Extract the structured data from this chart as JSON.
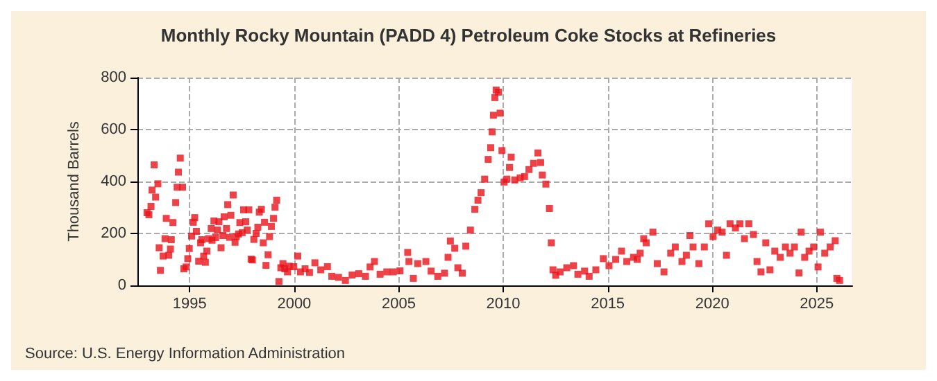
{
  "chart_data": {
    "type": "scatter",
    "title": "Monthly Rocky Mountain (PADD 4) Petroleum Coke Stocks at Refineries",
    "ylabel": "Thousand Barrels",
    "annotations": [
      "Source: U.S. Energy Information Administration"
    ],
    "x": [
      1992.96,
      1993.05,
      1993.15,
      1993.2,
      1993.3,
      1993.37,
      1993.48,
      1993.54,
      1993.6,
      1993.73,
      1993.82,
      1993.88,
      1994.0,
      1994.08,
      1994.12,
      1994.2,
      1994.33,
      1994.4,
      1994.46,
      1994.55,
      1994.66,
      1994.72,
      1994.83,
      1994.91,
      1994.98,
      1995.09,
      1995.17,
      1995.24,
      1995.32,
      1995.43,
      1995.52,
      1995.58,
      1995.67,
      1995.75,
      1995.82,
      1995.9,
      1996.03,
      1996.07,
      1996.16,
      1996.24,
      1996.33,
      1996.4,
      1996.5,
      1996.59,
      1996.65,
      1996.76,
      1996.82,
      1996.91,
      1996.97,
      1997.08,
      1997.17,
      1997.23,
      1997.34,
      1997.4,
      1997.51,
      1997.58,
      1997.68,
      1997.75,
      1997.83,
      1997.94,
      1998.0,
      1998.07,
      1998.18,
      1998.26,
      1998.33,
      1998.43,
      1998.52,
      1998.58,
      1998.65,
      1998.75,
      1998.82,
      1998.91,
      1999.01,
      1999.08,
      1999.16,
      1999.27,
      1999.36,
      1999.46,
      1999.55,
      1999.68,
      1999.76,
      1999.98,
      2000.17,
      2000.3,
      2000.52,
      2000.73,
      2000.99,
      2001.27,
      2001.59,
      2001.8,
      2002.12,
      2002.45,
      2002.77,
      2003.09,
      2003.41,
      2003.63,
      2003.84,
      2004.11,
      2004.43,
      2004.74,
      2005.06,
      2005.43,
      2005.49,
      2005.7,
      2005.91,
      2006.3,
      2006.55,
      2006.87,
      2007.19,
      2007.36,
      2007.47,
      2007.68,
      2007.83,
      2008.04,
      2008.21,
      2008.43,
      2008.64,
      2008.79,
      2008.94,
      2009.11,
      2009.28,
      2009.4,
      2009.47,
      2009.53,
      2009.6,
      2009.66,
      2009.77,
      2009.85,
      2009.94,
      2010.04,
      2010.17,
      2010.3,
      2010.38,
      2010.55,
      2010.81,
      2011.02,
      2011.23,
      2011.45,
      2011.66,
      2011.79,
      2011.87,
      2012.04,
      2012.21,
      2012.3,
      2012.38,
      2012.51,
      2012.72,
      2013.04,
      2013.36,
      2013.57,
      2013.89,
      2014.11,
      2014.43,
      2014.79,
      2015.06,
      2015.38,
      2015.66,
      2015.91,
      2016.23,
      2016.41,
      2016.55,
      2016.72,
      2016.84,
      2017.16,
      2017.37,
      2017.69,
      2018.01,
      2018.23,
      2018.55,
      2018.76,
      2018.93,
      2019.08,
      2019.36,
      2019.62,
      2019.83,
      2020.04,
      2020.26,
      2020.47,
      2020.68,
      2020.85,
      2021.11,
      2021.32,
      2021.54,
      2021.75,
      2021.97,
      2022.14,
      2022.33,
      2022.56,
      2022.76,
      2022.99,
      2023.25,
      2023.5,
      2023.72,
      2023.93,
      2024.15,
      2024.25,
      2024.42,
      2024.63,
      2024.85,
      2025.06,
      2025.17,
      2025.38,
      2025.64,
      2025.88,
      2025.96,
      2026.09
    ],
    "series": [
      {
        "color": "#e8131a",
        "values": [
          280,
          272,
          304,
          367,
          464,
          340,
          391,
          145,
          58,
          113,
          180,
          258,
          116,
          140,
          176,
          242,
          319,
          378,
          436,
          490,
          378,
          64,
          71,
          103,
          142,
          190,
          243,
          261,
          208,
          93,
          164,
          176,
          113,
          89,
          132,
          180,
          219,
          174,
          248,
          184,
          213,
          245,
          145,
          192,
          264,
          219,
          311,
          185,
          270,
          348,
          166,
          188,
          198,
          242,
          203,
          291,
          245,
          213,
          291,
          101,
          98,
          177,
          200,
          224,
          282,
          293,
          164,
          243,
          77,
          118,
          188,
          227,
          258,
          301,
          328,
          15,
          68,
          84,
          64,
          52,
          74,
          72,
          113,
          52,
          64,
          50,
          87,
          60,
          72,
          35,
          31,
          19,
          40,
          45,
          35,
          71,
          92,
          43,
          52,
          52,
          56,
          127,
          92,
          27,
          84,
          92,
          55,
          35,
          47,
          108,
          171,
          143,
          68,
          47,
          151,
          213,
          293,
          328,
          357,
          409,
          485,
          530,
          591,
          655,
          723,
          752,
          744,
          663,
          519,
          398,
          409,
          454,
          494,
          406,
          414,
          419,
          446,
          470,
          510,
          473,
          425,
          390,
          296,
          164,
          60,
          39,
          52,
          68,
          76,
          43,
          55,
          35,
          60,
          103,
          76,
          100,
          132,
          92,
          108,
          100,
          124,
          180,
          164,
          205,
          84,
          52,
          124,
          148,
          92,
          116,
          192,
          148,
          84,
          148,
          237,
          188,
          213,
          205,
          116,
          237,
          221,
          237,
          180,
          237,
          196,
          92,
          52,
          164,
          60,
          132,
          108,
          148,
          124,
          148,
          48,
          205,
          108,
          132,
          148,
          71,
          205,
          124,
          148,
          172,
          27,
          19
        ]
      }
    ],
    "xlim": [
      1992.5,
      2026.7
    ],
    "xticks": [
      1995,
      2000,
      2005,
      2010,
      2015,
      2020,
      2025
    ],
    "ylim": [
      0,
      800
    ],
    "yticks": [
      0,
      200,
      400,
      600,
      800
    ],
    "grid": true,
    "marker": "square"
  }
}
